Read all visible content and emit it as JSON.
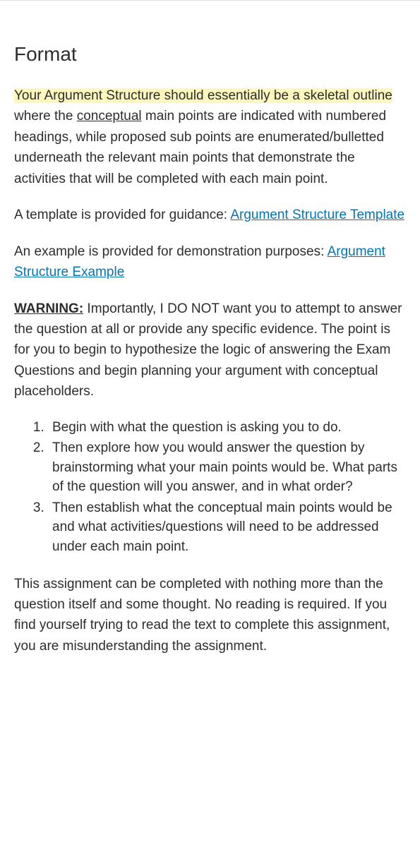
{
  "heading": "Format",
  "para1": {
    "highlighted": "Your Argument Structure should essentially be a skeletal outline",
    "rest1": " where the ",
    "underlined": "conceptual",
    "rest2": " main points are indicated with numbered headings, while proposed sub points are enumerated/bulletted underneath the relevant main points that demonstrate the activities that will be completed with each main point."
  },
  "para2": {
    "text": "A template is provided for guidance: ",
    "link": "Argument Structure Template"
  },
  "para3": {
    "text": "An example is provided for demonstration purposes: ",
    "link": "Argument Structure Example"
  },
  "para4": {
    "warning": "WARNING:",
    "rest": " Importantly, I DO NOT want you to attempt to answer the question at all or provide any specific evidence. The point is for you to begin to hypothesize the logic of answering the Exam Questions and begin planning your argument with conceptual placeholders."
  },
  "list": {
    "item1": "Begin with what the question is asking you to do.",
    "item2": "Then explore how you would answer the question by brainstorming what your main points would be. What parts of the question will you answer, and in what order?",
    "item3": "Then establish what the conceptual main points would be and what activities/questions will need to be addressed under each main point."
  },
  "para5": "This assignment can be completed with nothing more than the question itself and some thought. No reading is required. If you find yourself trying to read the text to complete this assignment, you are misunderstanding the assignment."
}
